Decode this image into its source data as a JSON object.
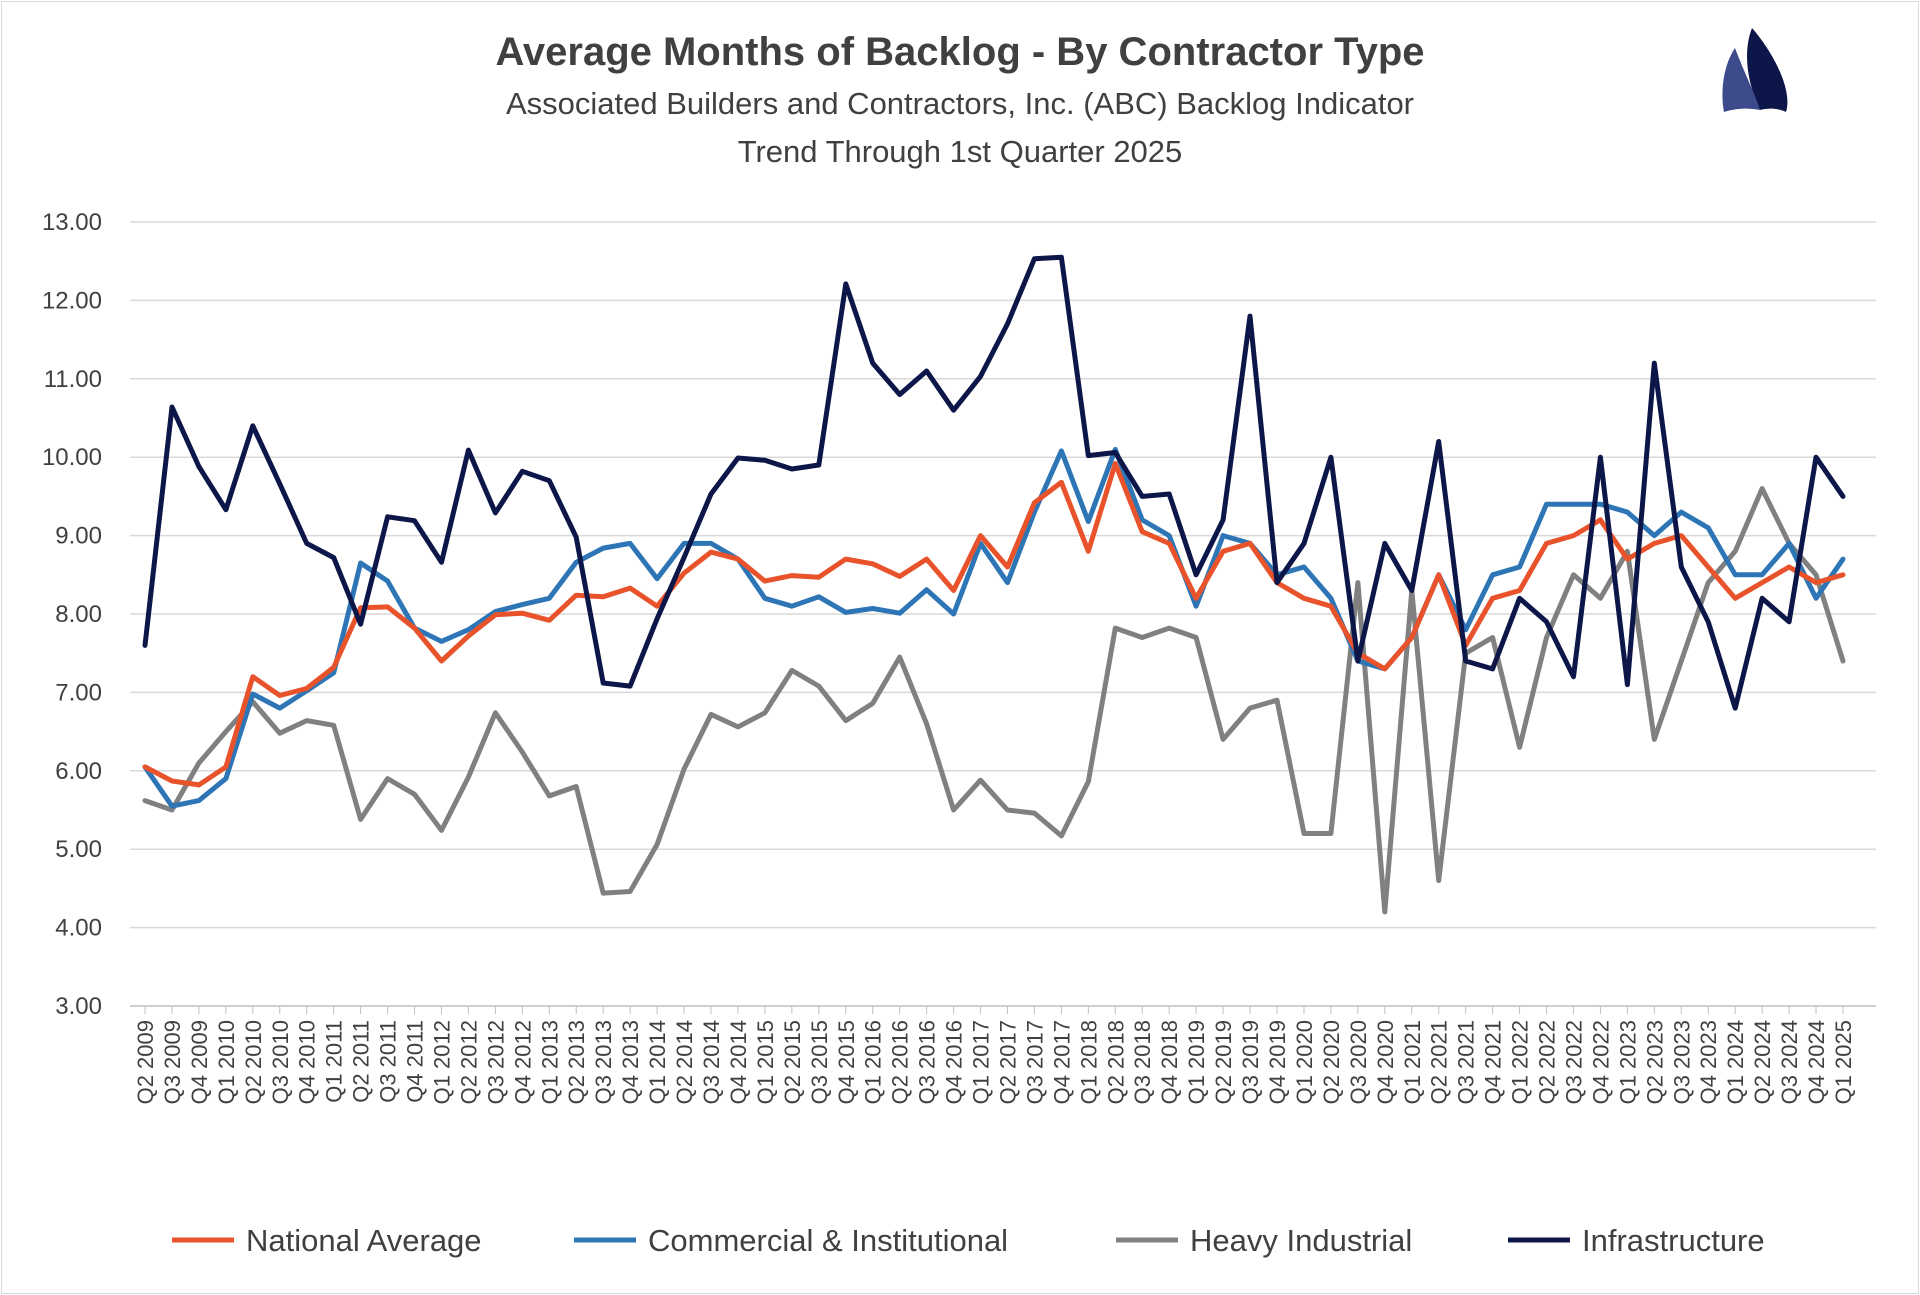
{
  "chart_data": {
    "type": "line",
    "title": "Average Months of Backlog - By Contractor Type",
    "subtitle": "Associated Builders and Contractors, Inc. (ABC) Backlog Indicator",
    "subtitle2": "Trend Through 1st Quarter 2025",
    "xlabel": "",
    "ylabel": "",
    "ylim": [
      3,
      13
    ],
    "yticks": [
      "3.00",
      "4.00",
      "5.00",
      "6.00",
      "7.00",
      "8.00",
      "9.00",
      "10.00",
      "11.00",
      "12.00",
      "13.00"
    ],
    "grid": true,
    "legend_position": "bottom",
    "categories": [
      "Q2 2009",
      "Q3 2009",
      "Q4 2009",
      "Q1 2010",
      "Q2 2010",
      "Q3 2010",
      "Q4 2010",
      "Q1 2011",
      "Q2 2011",
      "Q3 2011",
      "Q4 2011",
      "Q1 2012",
      "Q2 2012",
      "Q3 2012",
      "Q4 2012",
      "Q1 2013",
      "Q2 2013",
      "Q3 2013",
      "Q4 2013",
      "Q1 2014",
      "Q2 2014",
      "Q3 2014",
      "Q4 2014",
      "Q1 2015",
      "Q2 2015",
      "Q3 2015",
      "Q4 2015",
      "Q1 2016",
      "Q2 2016",
      "Q3 2016",
      "Q4 2016",
      "Q1 2017",
      "Q2 2017",
      "Q3 2017",
      "Q4 2017",
      "Q1 2018",
      "Q2 2018",
      "Q3 2018",
      "Q4 2018",
      "Q1 2019",
      "Q2 2019",
      "Q3 2019",
      "Q4 2019",
      "Q1 2020",
      "Q2 2020",
      "Q3 2020",
      "Q4 2020",
      "Q1 2021",
      "Q2 2021",
      "Q3 2021",
      "Q4 2021",
      "Q1 2022",
      "Q2 2022",
      "Q3 2022",
      "Q4 2022",
      "Q1 2023",
      "Q2 2023",
      "Q3 2023",
      "Q4 2023",
      "Q1 2024",
      "Q2 2024",
      "Q3 2024",
      "Q4 2024",
      "Q1 2025"
    ],
    "series": [
      {
        "name": "Heavy Industrial",
        "color": "#808080",
        "values": [
          5.62,
          5.5,
          6.1,
          6.5,
          6.88,
          6.48,
          6.64,
          6.58,
          5.38,
          5.9,
          5.7,
          5.24,
          5.92,
          6.74,
          6.24,
          5.68,
          5.8,
          4.44,
          4.46,
          5.06,
          6.02,
          6.72,
          6.56,
          6.74,
          7.28,
          7.08,
          6.64,
          6.86,
          7.45,
          6.6,
          5.5,
          5.88,
          5.5,
          5.46,
          5.17,
          5.86,
          7.82,
          7.7,
          7.82,
          7.7,
          6.4,
          6.8,
          6.9,
          5.2,
          5.2,
          8.4,
          4.2,
          8.3,
          4.6,
          7.5,
          7.7,
          6.3,
          7.7,
          8.5,
          8.2,
          8.8,
          6.4,
          7.4,
          8.4,
          8.8,
          9.6,
          8.9,
          8.5,
          7.4
        ]
      },
      {
        "name": "Commercial & Institutional",
        "color": "#2e75b6",
        "values": [
          6.05,
          5.55,
          5.62,
          5.9,
          6.98,
          6.8,
          7.02,
          7.25,
          8.65,
          8.42,
          7.82,
          7.65,
          7.8,
          8.03,
          8.12,
          8.2,
          8.66,
          8.84,
          8.9,
          8.45,
          8.9,
          8.9,
          8.7,
          8.2,
          8.1,
          8.22,
          8.02,
          8.07,
          8.01,
          8.31,
          8.0,
          8.9,
          8.4,
          9.3,
          10.08,
          9.18,
          10.1,
          9.2,
          9.0,
          8.1,
          9.0,
          8.9,
          8.5,
          8.6,
          8.2,
          7.4,
          7.3,
          7.7,
          8.5,
          7.8,
          8.5,
          8.6,
          9.4,
          9.4,
          9.4,
          9.3,
          9.0,
          9.3,
          9.1,
          8.5,
          8.5,
          8.9,
          8.2,
          8.7
        ]
      },
      {
        "name": "National Average",
        "color": "#e8532b",
        "values": [
          6.05,
          5.87,
          5.82,
          6.05,
          7.2,
          6.96,
          7.05,
          7.32,
          8.08,
          8.09,
          7.82,
          7.4,
          7.72,
          7.99,
          8.01,
          7.92,
          8.24,
          8.22,
          8.33,
          8.1,
          8.52,
          8.79,
          8.7,
          8.42,
          8.49,
          8.47,
          8.7,
          8.64,
          8.48,
          8.7,
          8.3,
          9.0,
          8.6,
          9.42,
          9.68,
          8.8,
          9.92,
          9.05,
          8.9,
          8.2,
          8.8,
          8.9,
          8.4,
          8.2,
          8.1,
          7.5,
          7.3,
          7.7,
          8.5,
          7.6,
          8.2,
          8.3,
          8.9,
          9.0,
          9.2,
          8.7,
          8.9,
          9.0,
          8.6,
          8.2,
          8.4,
          8.6,
          8.4,
          8.5
        ]
      },
      {
        "name": "Infrastructure",
        "color": "#0d1648",
        "values": [
          7.6,
          10.64,
          9.88,
          9.33,
          10.4,
          9.66,
          8.9,
          8.72,
          7.87,
          9.24,
          9.19,
          8.66,
          10.09,
          9.29,
          9.82,
          9.7,
          8.98,
          7.12,
          7.08,
          7.94,
          8.72,
          9.53,
          9.99,
          9.96,
          9.85,
          9.9,
          12.21,
          11.2,
          10.8,
          11.1,
          10.6,
          11.03,
          11.7,
          12.53,
          12.55,
          10.02,
          10.06,
          9.5,
          9.53,
          8.5,
          9.2,
          11.8,
          8.4,
          8.9,
          10.0,
          7.4,
          8.9,
          8.3,
          10.2,
          7.4,
          7.3,
          8.2,
          7.9,
          7.2,
          10.0,
          7.1,
          11.2,
          8.6,
          7.9,
          6.8,
          8.2,
          7.9,
          10.0,
          9.5
        ]
      }
    ],
    "legend_order": [
      "National Average",
      "Commercial & Institutional",
      "Heavy Industrial",
      "Infrastructure"
    ]
  },
  "logo": {
    "name": "sailboat-logo",
    "colors": [
      "#3d4a8c",
      "#0d1648"
    ]
  }
}
